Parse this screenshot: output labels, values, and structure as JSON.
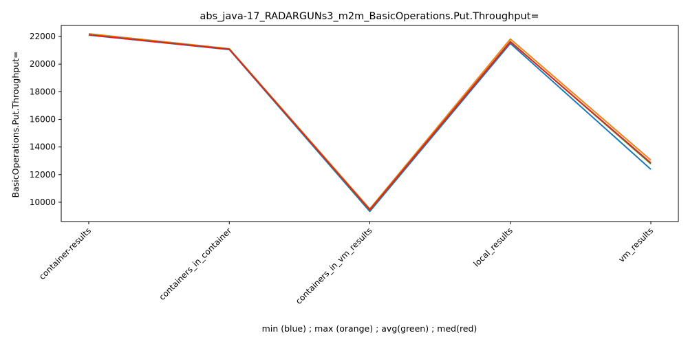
{
  "chart_data": {
    "type": "line",
    "title": "abs_java-17_RADARGUNs3_m2m_BasicOperations.Put.Throughput=",
    "xlabel": "min (blue) ; max (orange) ; avg(green) ; med(red)",
    "ylabel": "BasicOperations.Put.Throughput=",
    "categories": [
      "container-results",
      "containers_in_container",
      "containers_in_vm_results",
      "local_results",
      "vm_results"
    ],
    "ylim": [
      8600,
      22800
    ],
    "yticks": [
      10000,
      12000,
      14000,
      16000,
      18000,
      20000,
      22000
    ],
    "grid": false,
    "series": [
      {
        "name": "min",
        "color": "#1f77b4",
        "values": [
          22100,
          21050,
          9330,
          21500,
          12380
        ]
      },
      {
        "name": "max",
        "color": "#ff7f0e",
        "values": [
          22200,
          21120,
          9520,
          21820,
          13050
        ]
      },
      {
        "name": "avg",
        "color": "#2ca02c",
        "values": [
          22130,
          21080,
          9420,
          21640,
          12780
        ]
      },
      {
        "name": "med",
        "color": "#d62728",
        "values": [
          22120,
          21080,
          9450,
          21620,
          12850
        ]
      }
    ]
  }
}
